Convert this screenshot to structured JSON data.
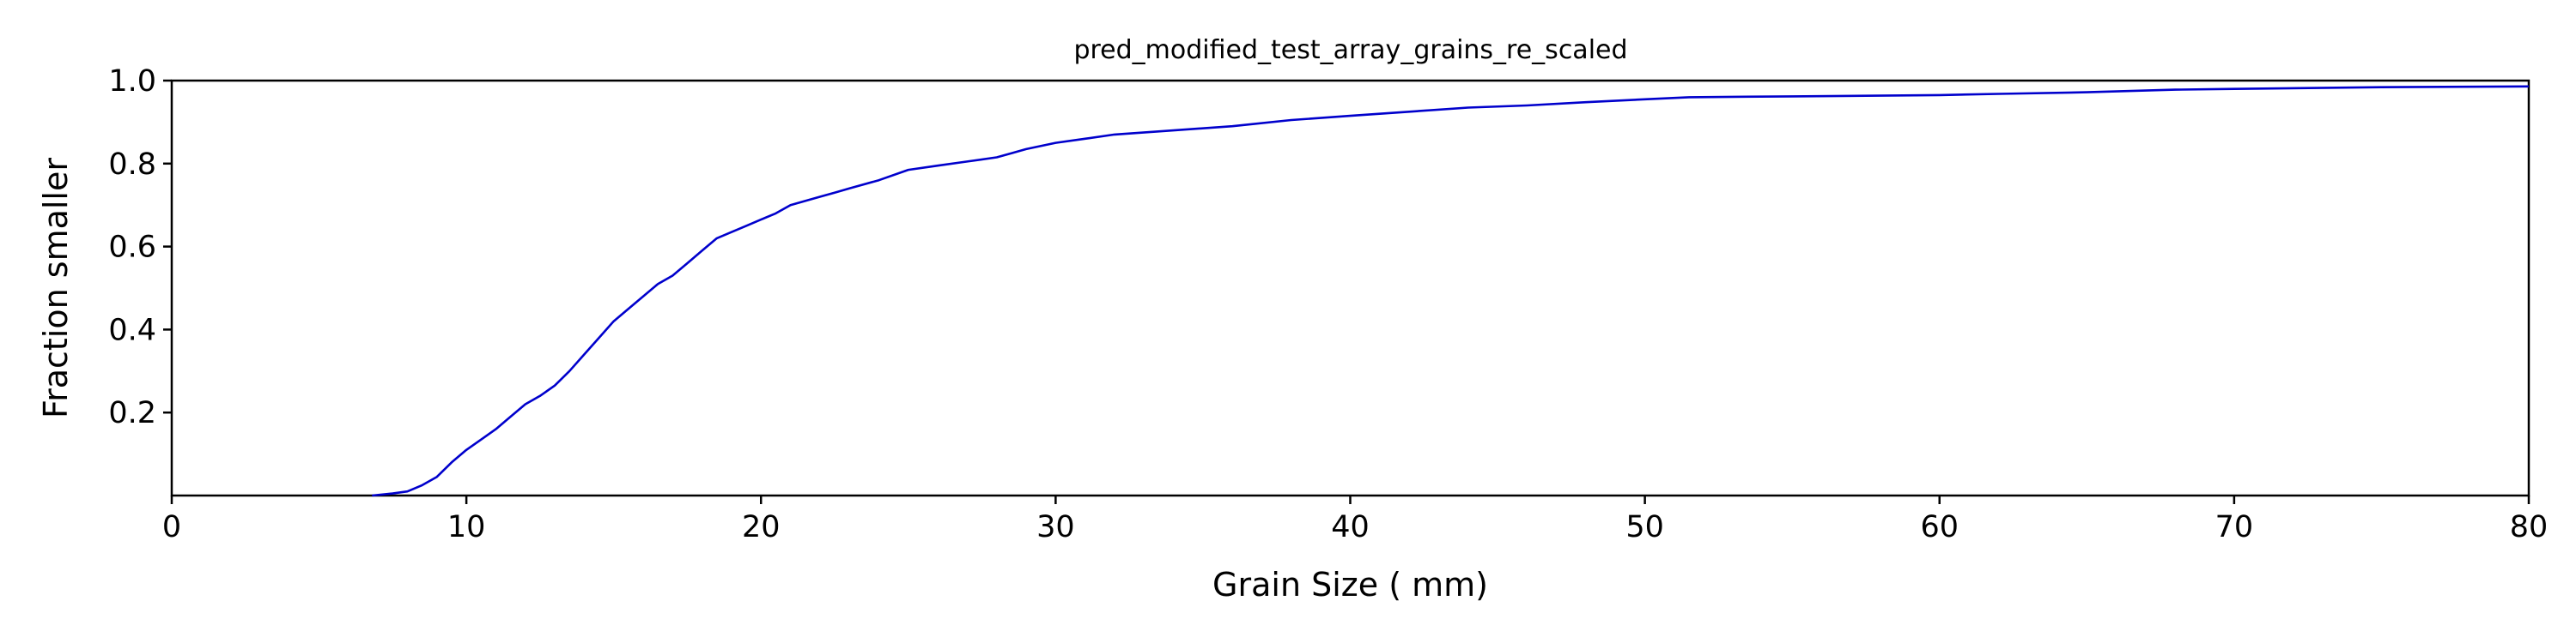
{
  "chart_data": {
    "type": "line",
    "title": "pred_modified_test_array_grains_re_scaled",
    "xlabel": "Grain Size ( mm)",
    "ylabel": "Fraction smaller",
    "xlim": [
      0,
      80
    ],
    "ylim": [
      0,
      1.0
    ],
    "xticks": [
      "0",
      "10",
      "20",
      "30",
      "40",
      "50",
      "60",
      "70",
      "80"
    ],
    "yticks": [
      "0.2",
      "0.4",
      "0.6",
      "0.8",
      "1.0"
    ],
    "grid": false,
    "legend": "none",
    "line_color": "#0000cc",
    "series": [
      {
        "x": [
          6.8,
          7.5,
          8.0,
          8.5,
          9.0,
          9.5,
          10.0,
          10.5,
          11.0,
          11.5,
          12.0,
          12.5,
          13.0,
          13.5,
          14.0,
          14.5,
          15.0,
          15.5,
          16.0,
          16.5,
          17.0,
          17.5,
          18.0,
          18.5,
          19.0,
          19.5,
          20.0,
          20.5,
          21.0,
          21.5,
          22.0,
          22.5,
          23.0,
          24.0,
          25.0,
          26.0,
          27.0,
          28.0,
          28.5,
          29.0,
          30.0,
          31.0,
          32.0,
          34.0,
          36.0,
          38.0,
          40.0,
          42.0,
          44.0,
          46.0,
          48.0,
          50.0,
          51.5,
          55.0,
          60.0,
          62.0,
          65.0,
          68.0,
          70.0,
          75.0,
          80.0
        ],
        "y": [
          0.0,
          0.005,
          0.01,
          0.025,
          0.045,
          0.08,
          0.11,
          0.135,
          0.16,
          0.19,
          0.22,
          0.24,
          0.265,
          0.3,
          0.34,
          0.38,
          0.42,
          0.45,
          0.48,
          0.51,
          0.53,
          0.56,
          0.59,
          0.62,
          0.635,
          0.65,
          0.665,
          0.68,
          0.7,
          0.71,
          0.72,
          0.73,
          0.74,
          0.76,
          0.785,
          0.795,
          0.805,
          0.815,
          0.825,
          0.835,
          0.85,
          0.86,
          0.87,
          0.88,
          0.89,
          0.905,
          0.915,
          0.925,
          0.935,
          0.94,
          0.948,
          0.955,
          0.96,
          0.962,
          0.965,
          0.968,
          0.972,
          0.978,
          0.98,
          0.984,
          0.986
        ]
      }
    ]
  }
}
